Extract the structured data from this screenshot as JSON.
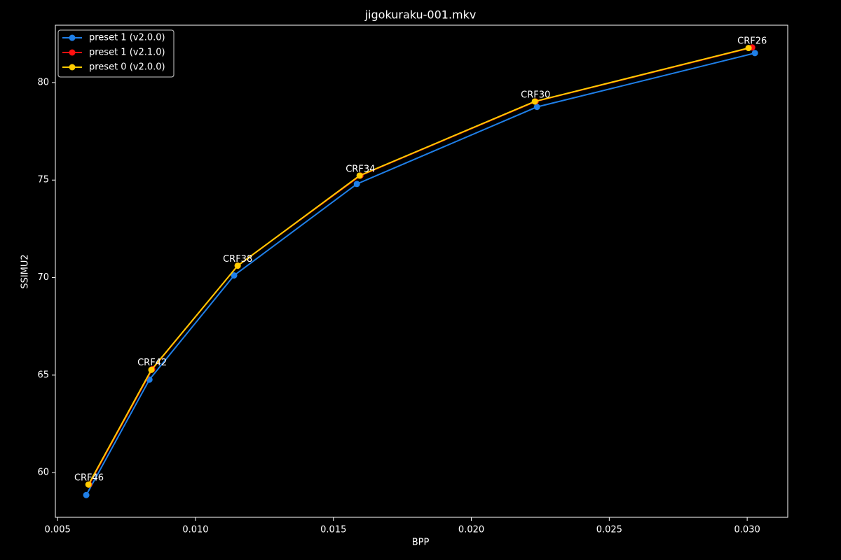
{
  "chart_data": {
    "type": "line",
    "title": "jigokuraku-001.mkv",
    "x_label": "BPP",
    "y_label": "SSIMU2",
    "xlim": [
      0.00492,
      0.03147
    ],
    "ylim": [
      57.71,
      82.94
    ],
    "xticks": [
      0.005,
      {
        "value": 0.01,
        "label": "0.010"
      },
      0.015,
      {
        "value": 0.02,
        "label": "0.020"
      },
      0.025,
      {
        "value": 0.03,
        "label": "0.030"
      }
    ],
    "yticks": [
      60,
      65,
      70,
      75,
      80
    ],
    "grid": false,
    "legend": "upper left",
    "point_labels": [
      "CRF46",
      "CRF42",
      "CRF38",
      "CRF34",
      "CRF30",
      "CRF26"
    ],
    "series": [
      {
        "name": "preset 1 (v2.0.0)",
        "color": "#1f7fe8",
        "x": [
          0.00604,
          0.00833,
          0.0114,
          0.01585,
          0.02238,
          0.03028
        ],
        "values": [
          58.85,
          64.77,
          70.11,
          74.8,
          78.75,
          81.51
        ]
      },
      {
        "name": "preset 1 (v2.1.0)",
        "color": "#ff1010",
        "x": [
          0.00614,
          0.00843,
          0.01153,
          0.01598,
          0.02233,
          0.03018
        ],
        "values": [
          59.39,
          65.3,
          70.61,
          75.23,
          79.03,
          81.8
        ]
      },
      {
        "name": "preset 0 (v2.0.0)",
        "color": "#ffcc00",
        "x": [
          0.00612,
          0.0084,
          0.01153,
          0.01595,
          0.0223,
          0.03005
        ],
        "values": [
          59.39,
          65.27,
          70.61,
          75.23,
          79.03,
          81.77
        ]
      }
    ]
  }
}
